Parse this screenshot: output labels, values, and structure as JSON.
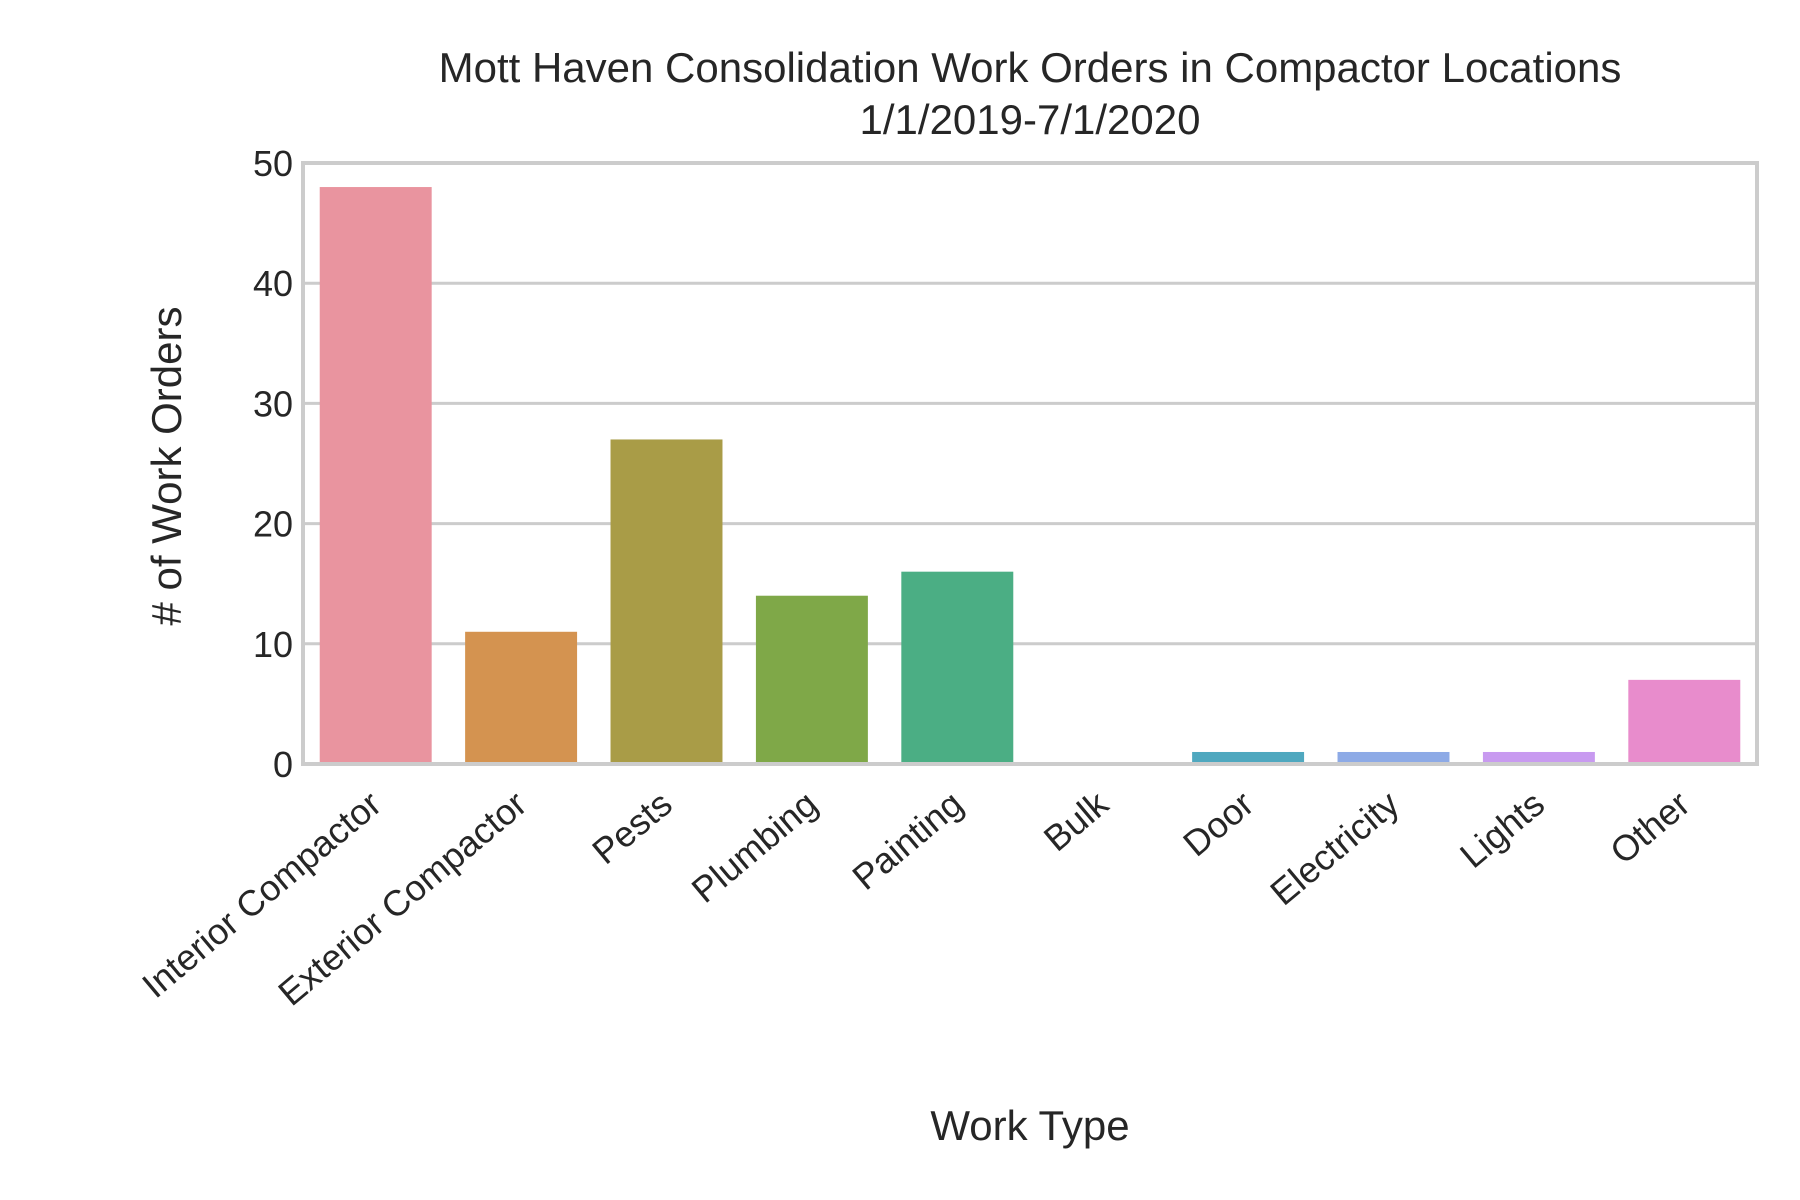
{
  "chart_data": {
    "type": "bar",
    "title": "Mott Haven Consolidation Work Orders in Compactor Locations",
    "subtitle": "1/1/2019-7/1/2020",
    "xlabel": "Work Type",
    "ylabel": "# of Work Orders",
    "ylim": [
      0,
      50
    ],
    "yticks": [
      0,
      10,
      20,
      30,
      40,
      50
    ],
    "grid": true,
    "categories": [
      "Interior Compactor",
      "Exterior Compactor",
      "Pests",
      "Plumbing",
      "Painting",
      "Bulk",
      "Door",
      "Electricity",
      "Lights",
      "Other"
    ],
    "values": [
      48,
      11,
      27,
      14,
      16,
      0,
      1,
      1,
      1,
      7
    ],
    "colors": [
      "#e9949f",
      "#d49350",
      "#a99c47",
      "#7fa848",
      "#4bae84",
      "#4daba0",
      "#4fa8bf",
      "#8daae6",
      "#c89af0",
      "#e88ccc"
    ]
  }
}
